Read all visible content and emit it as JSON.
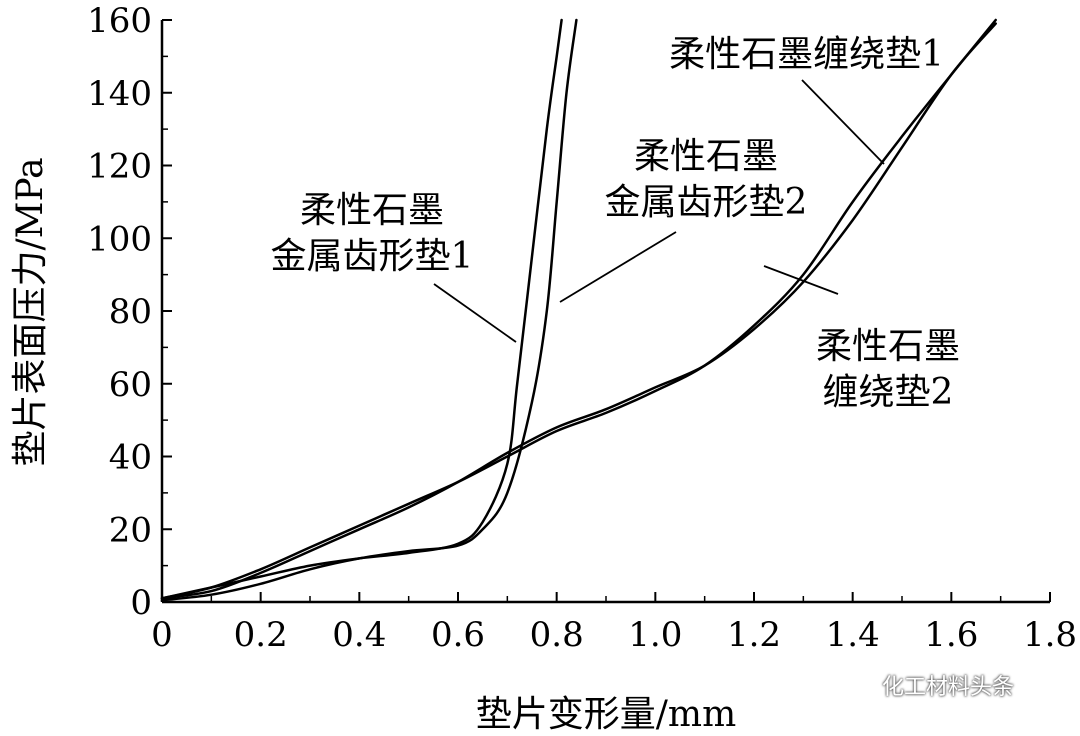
{
  "chart_data": {
    "type": "line",
    "xlabel": "垫片变形量/mm",
    "ylabel": "垫片表面压力/MPa",
    "xlim": [
      0,
      1.8
    ],
    "ylim": [
      0,
      160
    ],
    "xticks": [
      "0",
      "0.2",
      "0.4",
      "0.6",
      "0.8",
      "1.0",
      "1.2",
      "1.4",
      "1.6",
      "1.8"
    ],
    "yticks": [
      "0",
      "20",
      "40",
      "60",
      "80",
      "100",
      "120",
      "140",
      "160"
    ],
    "grid": false,
    "legend": "none",
    "series": [
      {
        "name": "柔性石墨缠绕垫1",
        "x": [
          0,
          0.1,
          0.2,
          0.3,
          0.4,
          0.5,
          0.6,
          0.7,
          0.8,
          0.9,
          1.0,
          1.1,
          1.2,
          1.3,
          1.4,
          1.5,
          1.6,
          1.69
        ],
        "y": [
          1,
          4,
          9,
          15,
          21,
          27,
          33,
          40,
          47,
          52,
          58,
          65,
          76,
          90,
          110,
          128,
          145,
          160
        ]
      },
      {
        "name": "柔性石墨缠绕垫2",
        "x": [
          0,
          0.1,
          0.2,
          0.3,
          0.4,
          0.5,
          0.6,
          0.7,
          0.8,
          0.9,
          1.0,
          1.1,
          1.2,
          1.3,
          1.4,
          1.5,
          1.6,
          1.69
        ],
        "y": [
          1,
          3,
          8,
          14,
          20,
          26,
          33,
          41,
          48,
          53,
          59,
          65,
          75,
          88,
          105,
          125,
          145,
          159
        ]
      },
      {
        "name": "柔性石墨金属齿形垫1",
        "x": [
          0,
          0.1,
          0.2,
          0.3,
          0.4,
          0.5,
          0.6,
          0.65,
          0.7,
          0.72,
          0.75,
          0.78,
          0.8,
          0.81
        ],
        "y": [
          1,
          4,
          7,
          10,
          12,
          13.5,
          16,
          22,
          38,
          60,
          95,
          130,
          150,
          160
        ]
      },
      {
        "name": "柔性石墨金属齿形垫2",
        "x": [
          0,
          0.1,
          0.2,
          0.3,
          0.4,
          0.5,
          0.6,
          0.65,
          0.7,
          0.75,
          0.78,
          0.8,
          0.82,
          0.84
        ],
        "y": [
          0.5,
          2,
          5,
          9,
          12,
          14,
          15.5,
          20,
          30,
          55,
          80,
          110,
          140,
          160
        ]
      }
    ],
    "annotations": [
      {
        "lines": [
          "柔性石墨缠绕垫1"
        ],
        "series_index": 0
      },
      {
        "lines": [
          "柔性石墨",
          "金属齿形垫2"
        ],
        "series_index": 3
      },
      {
        "lines": [
          "柔性石墨",
          "金属齿形垫1"
        ],
        "series_index": 2
      },
      {
        "lines": [
          "柔性石墨",
          "缠绕垫2"
        ],
        "series_index": 1
      }
    ]
  },
  "watermark": {
    "text": "化工材料头条",
    "icon": "wechat-icon"
  }
}
